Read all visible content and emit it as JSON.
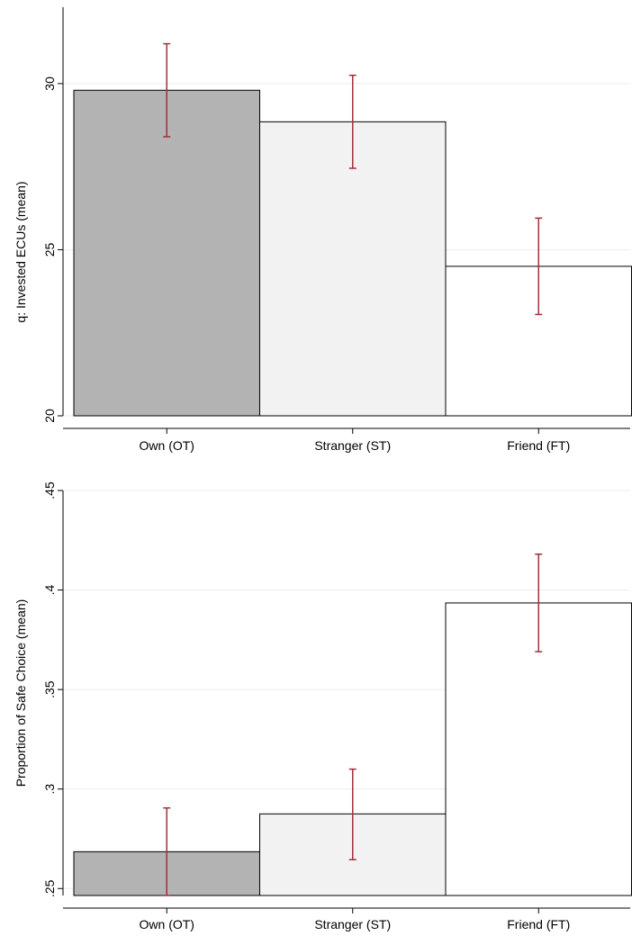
{
  "chart_data": [
    {
      "type": "bar",
      "categories": [
        "Own (OT)",
        "Stranger (ST)",
        "Friend (FT)"
      ],
      "values": [
        29.8,
        28.85,
        24.5
      ],
      "error_bars": [
        {
          "low": 28.4,
          "high": 31.2
        },
        {
          "low": 27.45,
          "high": 30.25
        },
        {
          "low": 23.05,
          "high": 25.95
        }
      ],
      "bar_colors": [
        "#b3b3b3",
        "#f2f2f2",
        "#ffffff"
      ],
      "error_bar_color": "#a0303a",
      "ylabel": "q: Invested ECUs (mean)",
      "xlabel": "",
      "ylim": [
        20,
        32.3
      ],
      "yticks": [
        20,
        25,
        30
      ],
      "ytick_labels": [
        "20",
        "25",
        "30"
      ],
      "grid": true
    },
    {
      "type": "bar",
      "categories": [
        "Own (OT)",
        "Stranger (ST)",
        "Friend (FT)"
      ],
      "values": [
        0.2685,
        0.2875,
        0.3935
      ],
      "error_bars": [
        {
          "low": 0.2465,
          "high": 0.2905
        },
        {
          "low": 0.2645,
          "high": 0.31
        },
        {
          "low": 0.369,
          "high": 0.418
        }
      ],
      "bar_colors": [
        "#b3b3b3",
        "#f2f2f2",
        "#ffffff"
      ],
      "error_bar_color": "#a0303a",
      "ylabel": "Proportion of Safe Choice (mean)",
      "xlabel": "",
      "ylim": [
        0.2465,
        0.45
      ],
      "yticks": [
        0.25,
        0.3,
        0.35,
        0.4,
        0.45
      ],
      "ytick_labels": [
        ".25",
        ".3",
        ".35",
        ".4",
        ".45"
      ],
      "grid": true
    }
  ]
}
